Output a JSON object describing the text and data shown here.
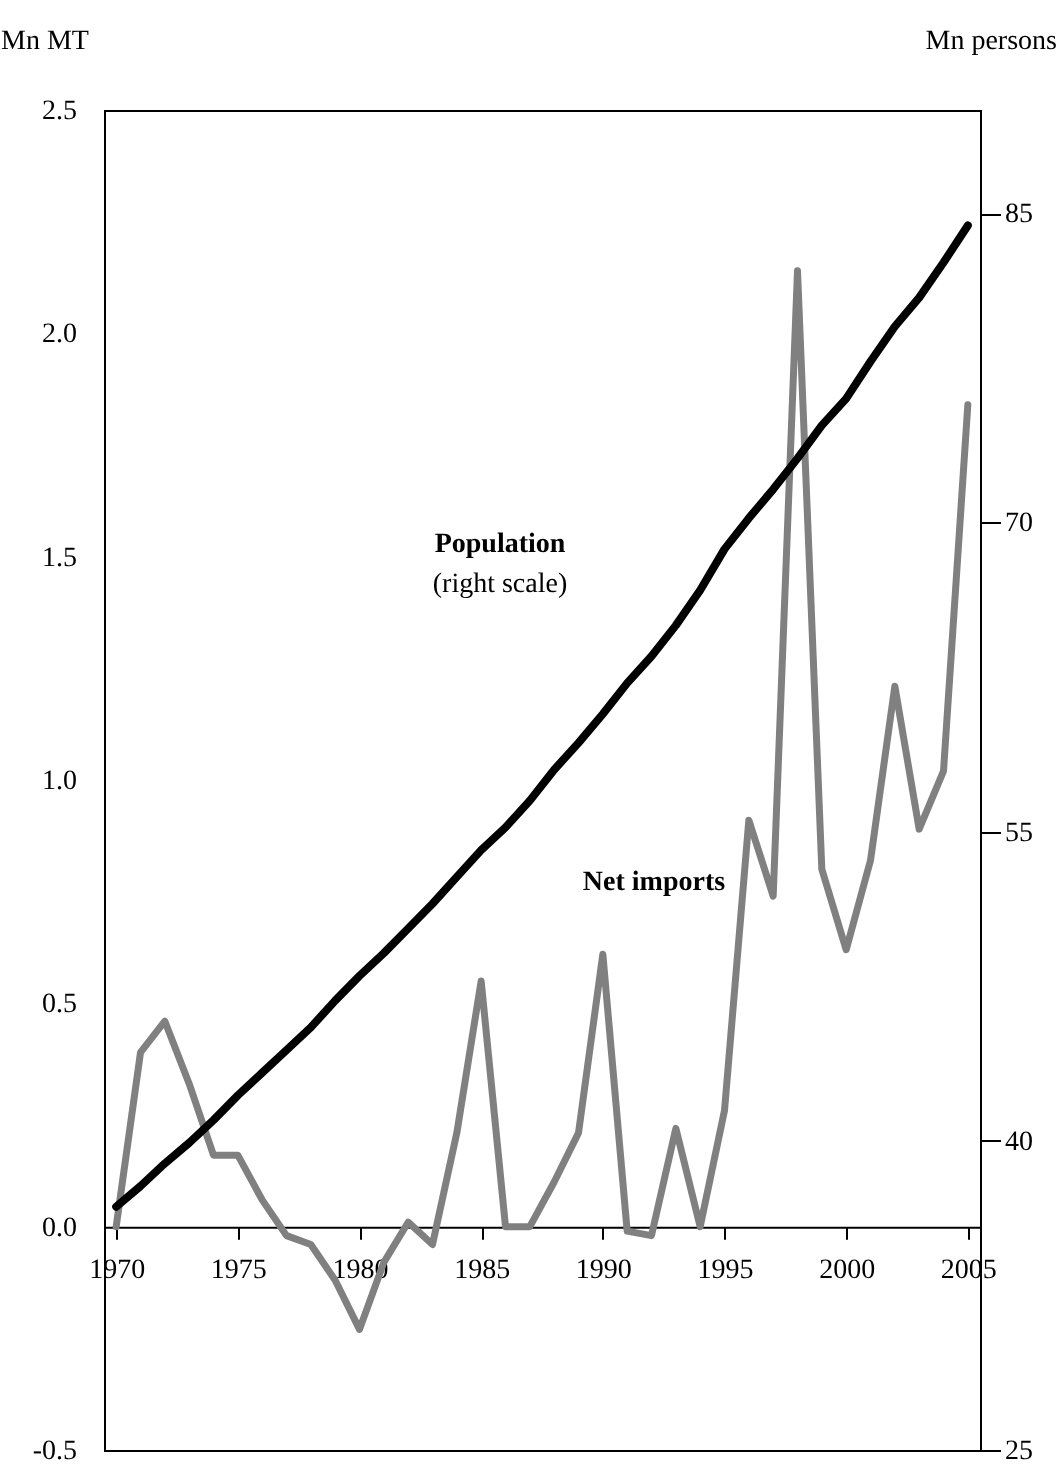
{
  "chart_data": {
    "type": "line",
    "ylabel": "Mn MT",
    "y2label": "Mn persons",
    "x": [
      1970,
      1971,
      1972,
      1973,
      1974,
      1975,
      1976,
      1977,
      1978,
      1979,
      1980,
      1981,
      1982,
      1983,
      1984,
      1985,
      1986,
      1987,
      1988,
      1989,
      1990,
      1991,
      1992,
      1993,
      1994,
      1995,
      1996,
      1997,
      1998,
      1999,
      2000,
      2001,
      2002,
      2003,
      2004,
      2005
    ],
    "xlim": [
      1969.5,
      2005.5
    ],
    "xticks": [
      1970,
      1975,
      1980,
      1985,
      1990,
      1995,
      2000,
      2005
    ],
    "ylim": [
      -0.5,
      2.5
    ],
    "yticks": [
      {
        "value": -0.5,
        "label": "-0.5"
      },
      {
        "value": 0,
        "label": "0.0"
      },
      {
        "value": 0.5,
        "label": "0.5"
      },
      {
        "value": 1,
        "label": "1.0"
      },
      {
        "value": 1.5,
        "label": "1.5"
      },
      {
        "value": 2,
        "label": "2.0"
      },
      {
        "value": 2.5,
        "label": "2.5"
      }
    ],
    "y2lim": [
      25,
      90
    ],
    "y2ticks": [
      25,
      40,
      55,
      70,
      85
    ],
    "series": [
      {
        "color": "#808080",
        "values": [
          0.0,
          0.39,
          0.46,
          0.32,
          0.16,
          0.16,
          0.06,
          -0.02,
          -0.04,
          -0.12,
          -0.23,
          -0.08,
          0.01,
          -0.04,
          0.21,
          0.55,
          0.0,
          0.0,
          0.1,
          0.21,
          0.61,
          -0.01,
          -0.02,
          0.22,
          0.0,
          0.26,
          0.91,
          0.74,
          2.14,
          0.8,
          0.62,
          0.82,
          1.21,
          0.89,
          1.02,
          1.84
        ]
      },
      {
        "color": "#000000",
        "axis": "y2",
        "values": [
          36.8,
          37.8,
          38.9,
          39.9,
          41.0,
          42.2,
          43.3,
          44.4,
          45.5,
          46.8,
          48.0,
          49.1,
          50.3,
          51.5,
          52.8,
          54.1,
          55.2,
          56.5,
          58.0,
          59.3,
          60.7,
          62.2,
          63.5,
          65.0,
          66.7,
          68.7,
          70.2,
          71.6,
          73.1,
          74.7,
          76.0,
          77.8,
          79.5,
          80.9,
          82.6,
          84.4
        ]
      }
    ],
    "annotations": [
      "Population",
      "(right scale)",
      "Net imports"
    ]
  }
}
